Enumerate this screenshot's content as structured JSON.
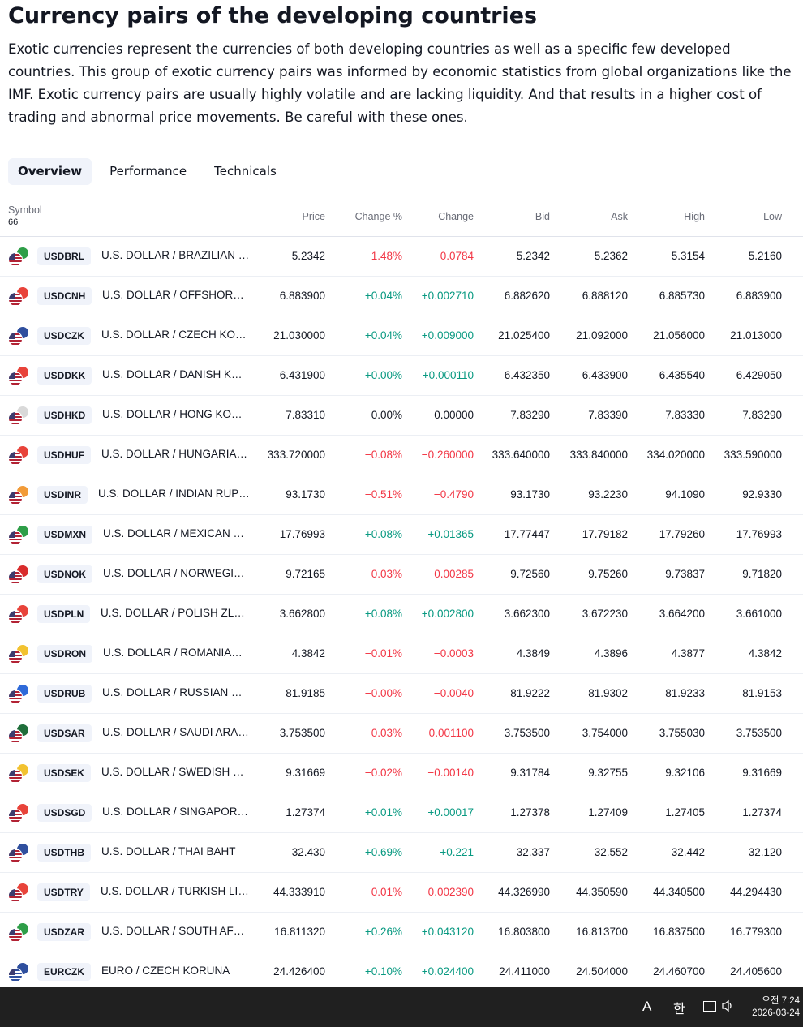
{
  "page": {
    "title": "Currency pairs of the developing countries",
    "description": "Exotic currencies represent the currencies of both developing countries as well as a specific few developed countries. This group of exotic currency pairs was informed by economic statistics from global organizations like the IMF. Exotic currency pairs are usually highly volatile and are lacking liquidity. And that results in a higher cost of trading and abnormal price movements. Be careful with these ones."
  },
  "tabs": [
    {
      "label": "Overview",
      "active": true
    },
    {
      "label": "Performance",
      "active": false
    },
    {
      "label": "Technicals",
      "active": false
    }
  ],
  "table": {
    "symbol_header": "Symbol",
    "symbol_count": "66",
    "columns": {
      "price": "Price",
      "change_pct": "Change %",
      "change": "Change",
      "bid": "Bid",
      "ask": "Ask",
      "high": "High",
      "low": "Low"
    },
    "rows": [
      {
        "symbol": "USDBRL",
        "desc": "U.S. DOLLAR / BRAZILIAN R...",
        "price": "5.2342",
        "change_pct": "−1.48%",
        "change": "−0.0784",
        "dir": "neg",
        "bid": "5.2342",
        "ask": "5.2362",
        "high": "5.3154",
        "low": "5.2160",
        "flag2": "#2e9e48"
      },
      {
        "symbol": "USDCNH",
        "desc": "U.S. DOLLAR / OFFSHORE C...",
        "price": "6.883900",
        "change_pct": "+0.04%",
        "change": "+0.002710",
        "dir": "pos",
        "bid": "6.882620",
        "ask": "6.888120",
        "high": "6.885730",
        "low": "6.883900",
        "flag2": "#e8433a"
      },
      {
        "symbol": "USDCZK",
        "desc": "U.S. DOLLAR / CZECH KORU...",
        "price": "21.030000",
        "change_pct": "+0.04%",
        "change": "+0.009000",
        "dir": "pos",
        "bid": "21.025400",
        "ask": "21.092000",
        "high": "21.056000",
        "low": "21.013000",
        "flag2": "#2f4f9e"
      },
      {
        "symbol": "USDDKK",
        "desc": "U.S. DOLLAR / DANISH KRONE",
        "price": "6.431900",
        "change_pct": "+0.00%",
        "change": "+0.000110",
        "dir": "pos",
        "bid": "6.432350",
        "ask": "6.433900",
        "high": "6.435540",
        "low": "6.429050",
        "flag2": "#e8433a"
      },
      {
        "symbol": "USDHKD",
        "desc": "U.S. DOLLAR / HONG KONG ...",
        "price": "7.83310",
        "change_pct": "0.00%",
        "change": "0.00000",
        "dir": "neu",
        "bid": "7.83290",
        "ask": "7.83390",
        "high": "7.83330",
        "low": "7.83290",
        "flag2": "#d9d9d9"
      },
      {
        "symbol": "USDHUF",
        "desc": "U.S. DOLLAR / HUNGARIAN ...",
        "price": "333.720000",
        "change_pct": "−0.08%",
        "change": "−0.260000",
        "dir": "neg",
        "bid": "333.640000",
        "ask": "333.840000",
        "high": "334.020000",
        "low": "333.590000",
        "flag2": "#e8433a"
      },
      {
        "symbol": "USDINR",
        "desc": "U.S. DOLLAR / INDIAN RUPEE",
        "price": "93.1730",
        "change_pct": "−0.51%",
        "change": "−0.4790",
        "dir": "neg",
        "bid": "93.1730",
        "ask": "93.2230",
        "high": "94.1090",
        "low": "92.9330",
        "flag2": "#f29b38"
      },
      {
        "symbol": "USDMXN",
        "desc": "U.S. DOLLAR / MEXICAN PESO",
        "price": "17.76993",
        "change_pct": "+0.08%",
        "change": "+0.01365",
        "dir": "pos",
        "bid": "17.77447",
        "ask": "17.79182",
        "high": "17.79260",
        "low": "17.76993",
        "flag2": "#2e9e48"
      },
      {
        "symbol": "USDNOK",
        "desc": "U.S. DOLLAR / NORWEGIAN ...",
        "price": "9.72165",
        "change_pct": "−0.03%",
        "change": "−0.00285",
        "dir": "neg",
        "bid": "9.72560",
        "ask": "9.75260",
        "high": "9.73837",
        "low": "9.71820",
        "flag2": "#d92c2c"
      },
      {
        "symbol": "USDPLN",
        "desc": "U.S. DOLLAR / POLISH ZLOTY",
        "price": "3.662800",
        "change_pct": "+0.08%",
        "change": "+0.002800",
        "dir": "pos",
        "bid": "3.662300",
        "ask": "3.672230",
        "high": "3.664200",
        "low": "3.661000",
        "flag2": "#e8433a"
      },
      {
        "symbol": "USDRON",
        "desc": "U.S. DOLLAR / ROMANIAN L...",
        "price": "4.3842",
        "change_pct": "−0.01%",
        "change": "−0.0003",
        "dir": "neg",
        "bid": "4.3849",
        "ask": "4.3896",
        "high": "4.3877",
        "low": "4.3842",
        "flag2": "#f2c230"
      },
      {
        "symbol": "USDRUB",
        "desc": "U.S. DOLLAR / RUSSIAN RUB...",
        "price": "81.9185",
        "change_pct": "−0.00%",
        "change": "−0.0040",
        "dir": "neg",
        "bid": "81.9222",
        "ask": "81.9302",
        "high": "81.9233",
        "low": "81.9153",
        "flag2": "#2f6ad9"
      },
      {
        "symbol": "USDSAR",
        "desc": "U.S. DOLLAR / SAUDI ARABI...",
        "price": "3.753500",
        "change_pct": "−0.03%",
        "change": "−0.001100",
        "dir": "neg",
        "bid": "3.753500",
        "ask": "3.754000",
        "high": "3.755030",
        "low": "3.753500",
        "flag2": "#1f6e3a"
      },
      {
        "symbol": "USDSEK",
        "desc": "U.S. DOLLAR / SWEDISH KRO...",
        "price": "9.31669",
        "change_pct": "−0.02%",
        "change": "−0.00140",
        "dir": "neg",
        "bid": "9.31784",
        "ask": "9.32755",
        "high": "9.32106",
        "low": "9.31669",
        "flag2": "#f2c230"
      },
      {
        "symbol": "USDSGD",
        "desc": "U.S. DOLLAR / SINGAPORE D...",
        "price": "1.27374",
        "change_pct": "+0.01%",
        "change": "+0.00017",
        "dir": "pos",
        "bid": "1.27378",
        "ask": "1.27409",
        "high": "1.27405",
        "low": "1.27374",
        "flag2": "#e8433a"
      },
      {
        "symbol": "USDTHB",
        "desc": "U.S. DOLLAR / THAI BAHT",
        "price": "32.430",
        "change_pct": "+0.69%",
        "change": "+0.221",
        "dir": "pos",
        "bid": "32.337",
        "ask": "32.552",
        "high": "32.442",
        "low": "32.120",
        "flag2": "#2f4f9e"
      },
      {
        "symbol": "USDTRY",
        "desc": "U.S. DOLLAR / TURKISH LIRA",
        "price": "44.333910",
        "change_pct": "−0.01%",
        "change": "−0.002390",
        "dir": "neg",
        "bid": "44.326990",
        "ask": "44.350590",
        "high": "44.340500",
        "low": "44.294430",
        "flag2": "#e8433a"
      },
      {
        "symbol": "USDZAR",
        "desc": "U.S. DOLLAR / SOUTH AFRIC...",
        "price": "16.811320",
        "change_pct": "+0.26%",
        "change": "+0.043120",
        "dir": "pos",
        "bid": "16.803800",
        "ask": "16.813700",
        "high": "16.837500",
        "low": "16.779300",
        "flag2": "#2e9e48"
      },
      {
        "symbol": "EURCZK",
        "desc": "EURO / CZECH KORUNA",
        "price": "24.426400",
        "change_pct": "+0.10%",
        "change": "+0.024400",
        "dir": "pos",
        "bid": "24.411000",
        "ask": "24.504000",
        "high": "24.460700",
        "low": "24.405600",
        "flag2": "#2f4f9e",
        "flag1": "#2f4f9e"
      }
    ]
  },
  "taskbar": {
    "ime_mode": "A",
    "ime_lang": "한",
    "time": "오전 7:24",
    "date": "2026-03-24"
  },
  "colors": {
    "positive": "#089981",
    "negative": "#f23645",
    "taskbar_bg": "#202020",
    "tab_active_bg": "#f0f3fa"
  }
}
